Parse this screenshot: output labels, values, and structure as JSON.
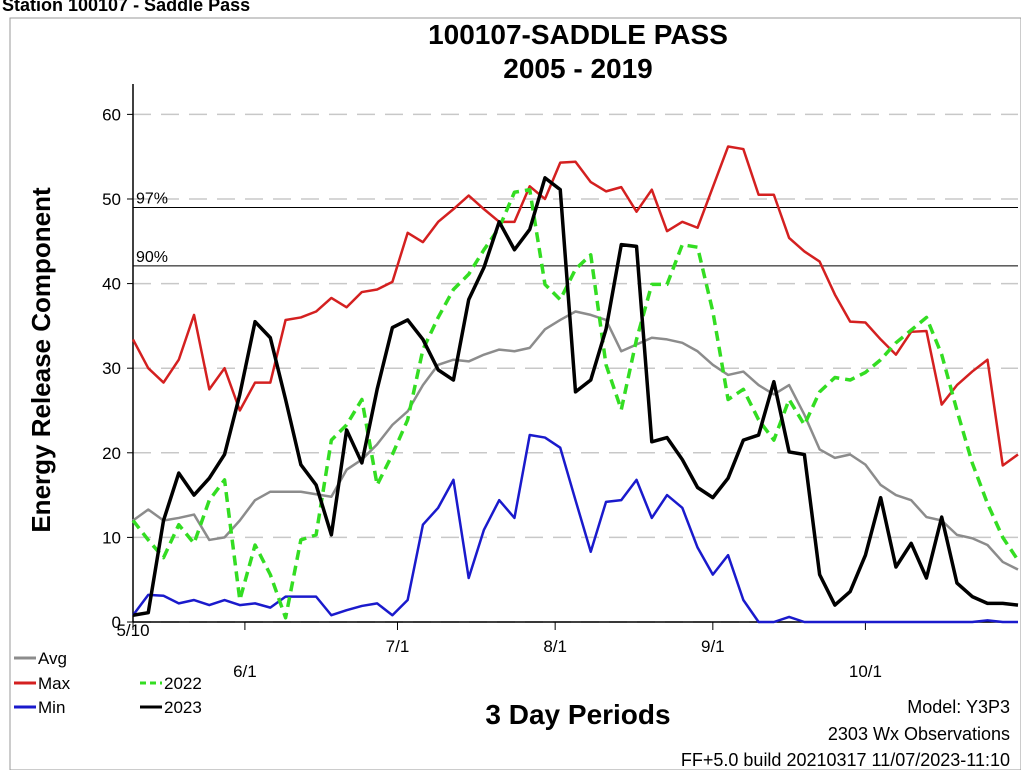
{
  "header": "Station 100107 - Saddle Pass",
  "chart_data": {
    "type": "line",
    "title": "100107-SADDLE PASS",
    "subtitle": "2005 - 2019",
    "y_label": "Energy Release Component",
    "x_label": "3 Day Periods",
    "footer": [
      "Model: Y3P3",
      "2303 Wx Observations",
      "FF+5.0 build 20210317 11/07/2023-11:10"
    ],
    "x": [
      0,
      3,
      6,
      9,
      12,
      15,
      18,
      21,
      24,
      27,
      30,
      33,
      36,
      39,
      42,
      45,
      48,
      51,
      54,
      57,
      60,
      63,
      66,
      69,
      72,
      75,
      78,
      81,
      84,
      87,
      90,
      93,
      96,
      99,
      102,
      105,
      108,
      111,
      114,
      117,
      120,
      123,
      126,
      129,
      132,
      135,
      138,
      141,
      144,
      147,
      150,
      153,
      156,
      159,
      162,
      165,
      168,
      171,
      174
    ],
    "xlim": [
      0,
      174
    ],
    "xticks": [
      {
        "value": 0,
        "label": "5/10"
      },
      {
        "value": 22,
        "label": "6/1"
      },
      {
        "value": 52,
        "label": "7/1"
      },
      {
        "value": 83,
        "label": "8/1"
      },
      {
        "value": 114,
        "label": "9/1"
      },
      {
        "value": 144,
        "label": "10/1"
      }
    ],
    "ylim": [
      0,
      63
    ],
    "yticks": [
      0,
      10,
      20,
      30,
      40,
      50,
      60
    ],
    "grid": true,
    "reference_lines": [
      {
        "label": "97%",
        "value": 49
      },
      {
        "label": "90%",
        "value": 42.1
      }
    ],
    "series": [
      {
        "name": "Avg",
        "color": "#8c8c8c",
        "values": [
          12,
          13.3,
          12,
          12.3,
          12.7,
          9.7,
          10,
          12,
          14.4,
          15.4,
          15.4,
          15.4,
          15.1,
          14.8,
          18,
          19.2,
          21,
          23.3,
          24.9,
          28,
          30.4,
          31,
          30.8,
          31.6,
          32.2,
          32,
          32.4,
          34.6,
          35.7,
          36.7,
          36.3,
          35.7,
          32,
          32.8,
          33.6,
          33.4,
          33,
          32,
          30.4,
          29.2,
          29.6,
          28,
          26.9,
          28,
          24.5,
          20.4,
          19.4,
          19.8,
          18.6,
          16.2,
          15,
          14.4,
          12.4,
          12,
          10.3,
          9.9,
          9.1,
          7.1,
          6.2
        ]
      },
      {
        "name": "Max",
        "color": "#d42020",
        "values": [
          33.4,
          30,
          28.3,
          31,
          36.3,
          27.5,
          30,
          25,
          28.3,
          28.3,
          35.7,
          36,
          36.7,
          38.3,
          37.2,
          39,
          39.3,
          40.2,
          46,
          44.9,
          47.3,
          48.8,
          50.4,
          48.8,
          47.3,
          47.3,
          51.5,
          50,
          54.3,
          54.4,
          52,
          50.9,
          51.4,
          48.5,
          51.1,
          46.2,
          47.3,
          46.6,
          51.4,
          56.2,
          55.9,
          50.5,
          50.5,
          45.4,
          43.8,
          42.6,
          38.7,
          35.5,
          35.4,
          33.4,
          31.6,
          34.3,
          34.4,
          25.7,
          28,
          29.6,
          31,
          18.5,
          19.8
        ]
      },
      {
        "name": "Min",
        "color": "#1a1acc",
        "values": [
          0.8,
          3.2,
          3.1,
          2.2,
          2.6,
          2,
          2.6,
          2,
          2.2,
          1.7,
          3,
          3,
          3,
          0.8,
          1.4,
          1.9,
          2.2,
          0.8,
          2.6,
          11.5,
          13.5,
          16.8,
          5.2,
          10.9,
          14.4,
          12.3,
          22.1,
          21.8,
          20.6,
          14.4,
          8.3,
          14.2,
          14.4,
          16.8,
          12.3,
          15,
          13.5,
          8.8,
          5.6,
          7.9,
          2.6,
          0,
          0,
          0.6,
          0,
          0,
          0,
          0,
          0,
          0,
          0,
          0,
          0,
          0,
          0,
          0,
          0.2,
          0,
          0
        ]
      },
      {
        "name": "2022",
        "color": "#33dd22",
        "dashed": true,
        "values": [
          12,
          9.7,
          7.6,
          11.5,
          9.3,
          14.4,
          16.8,
          2.6,
          9.1,
          5.6,
          0.5,
          9.7,
          10.3,
          21.5,
          23.3,
          26.3,
          16.2,
          19.8,
          23.9,
          32.2,
          36,
          39.3,
          41.1,
          44,
          46.6,
          50.8,
          51.1,
          39.9,
          38.1,
          41.7,
          43.4,
          30.4,
          25.1,
          33.4,
          39.9,
          39.9,
          44.6,
          44.3,
          36.7,
          26.3,
          27.5,
          23.9,
          21.5,
          26.3,
          23.3,
          27.2,
          28.9,
          28.6,
          29.5,
          31,
          33,
          34.5,
          36,
          31.6,
          25,
          18.8,
          14,
          10,
          7.3
        ]
      },
      {
        "name": "2023",
        "color": "#000000",
        "values": [
          0.8,
          1.1,
          12,
          17.6,
          15,
          17,
          19.8,
          26.9,
          35.5,
          33.6,
          26.3,
          18.6,
          16.2,
          10.3,
          22.7,
          18.8,
          27.5,
          34.8,
          35.7,
          33.4,
          29.8,
          28.6,
          38.1,
          41.9,
          47.3,
          44,
          46.4,
          52.5,
          51.1,
          27.2,
          28.6,
          34.6,
          44.6,
          44.4,
          21.3,
          21.8,
          19.2,
          15.9,
          14.7,
          17,
          21.5,
          22.1,
          28.4,
          20.1,
          19.8,
          5.6,
          2,
          3.6,
          7.9,
          14.7,
          6.5,
          9.3,
          5.2,
          12.4,
          4.6,
          3,
          2.2,
          2.2,
          2
        ]
      }
    ]
  }
}
